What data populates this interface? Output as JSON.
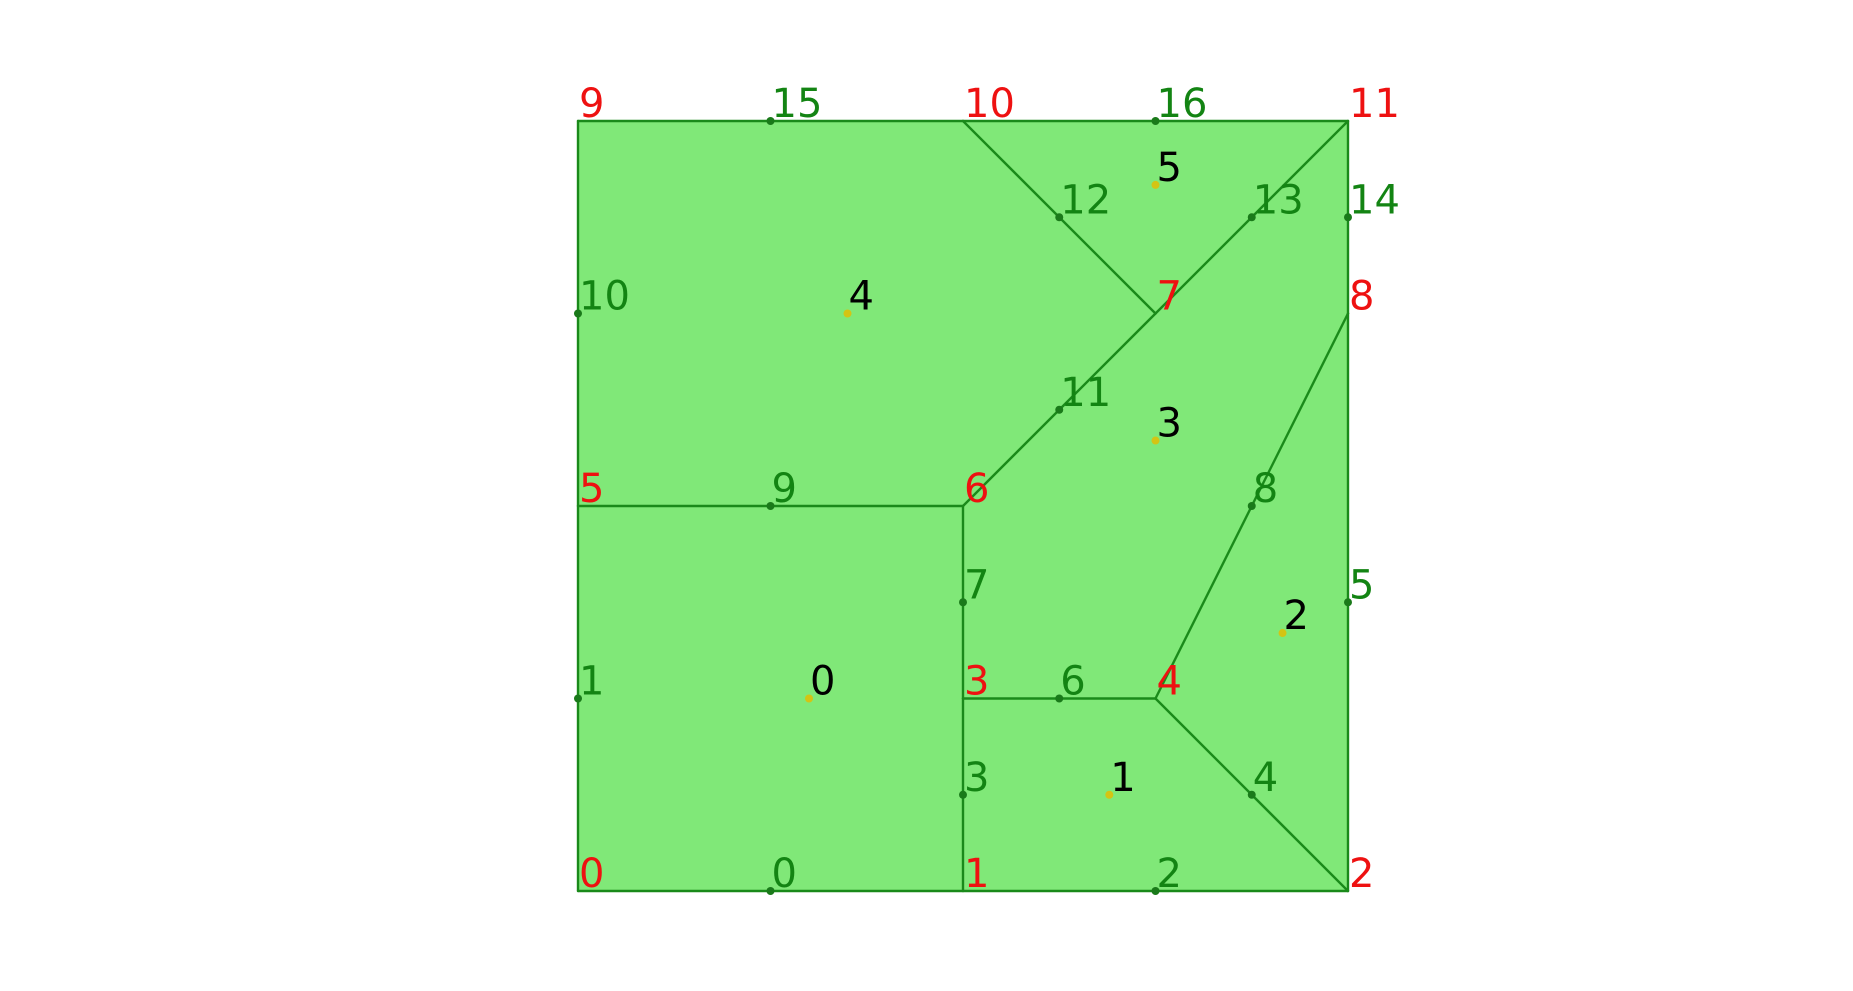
{
  "vertex_labels": [
    "0",
    "1",
    "2",
    "3",
    "4",
    "5",
    "6",
    "7",
    "8",
    "9",
    "10",
    "11"
  ],
  "edge_labels": [
    "0",
    "1",
    "2",
    "3",
    "4",
    "5",
    "6",
    "7",
    "8",
    "9",
    "10",
    "11",
    "12",
    "13",
    "14",
    "15",
    "16"
  ],
  "face_labels": [
    "0",
    "1",
    "2",
    "3",
    "4",
    "5"
  ],
  "colors": {
    "face_fill": "#80e878",
    "edge_stroke": "#1a8a1a",
    "vertex_label": "#ee1111",
    "edge_label": "#138413",
    "face_label": "#000000",
    "face_marker": "#d4c414"
  }
}
